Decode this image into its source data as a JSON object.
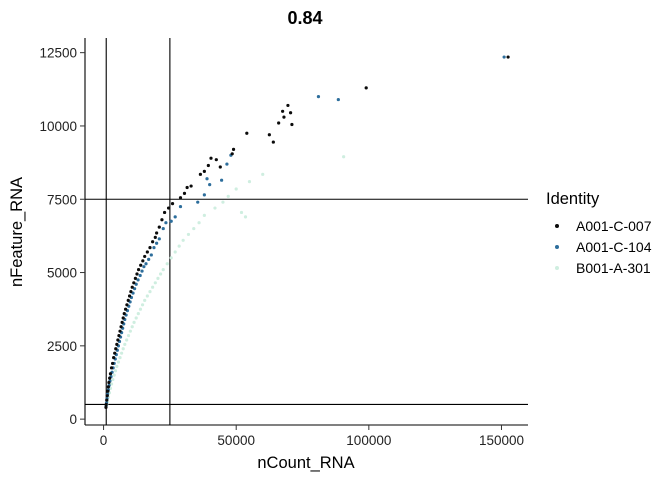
{
  "chart_data": {
    "type": "scatter",
    "title": "0.84",
    "xlabel": "nCount_RNA",
    "ylabel": "nFeature_RNA",
    "xlim": [
      -7000,
      160000
    ],
    "ylim": [
      -200,
      13000
    ],
    "x_ticks": [
      0,
      50000,
      100000,
      150000
    ],
    "y_ticks": [
      0,
      2500,
      5000,
      7500,
      10000,
      12500
    ],
    "grid": false,
    "legend": {
      "title": "Identity",
      "position": "right"
    },
    "reference_lines": {
      "vertical": [
        1000,
        25000
      ],
      "horizontal": [
        500,
        7500
      ]
    },
    "series": [
      {
        "name": "A001-C-007",
        "color": "#0b0b0b",
        "points": [
          [
            152500,
            12350
          ],
          [
            99000,
            11300
          ],
          [
            69500,
            10700
          ],
          [
            67500,
            10500
          ],
          [
            70500,
            10450
          ],
          [
            68000,
            10300
          ],
          [
            66000,
            10100
          ],
          [
            71000,
            10050
          ],
          [
            54000,
            9750
          ],
          [
            62500,
            9700
          ],
          [
            64000,
            9450
          ],
          [
            49000,
            9200
          ],
          [
            48500,
            9050
          ],
          [
            40500,
            8900
          ],
          [
            42500,
            8850
          ],
          [
            39500,
            8650
          ],
          [
            44000,
            8600
          ],
          [
            38000,
            8450
          ],
          [
            36500,
            8350
          ],
          [
            33000,
            7950
          ],
          [
            31500,
            7900
          ],
          [
            30500,
            7700
          ],
          [
            29000,
            7550
          ],
          [
            26000,
            7350
          ],
          [
            24500,
            7200
          ],
          [
            23000,
            7050
          ],
          [
            22000,
            6800
          ],
          [
            21000,
            6550
          ],
          [
            20000,
            6350
          ],
          [
            19500,
            6200
          ],
          [
            18500,
            6050
          ],
          [
            17500,
            5850
          ],
          [
            16500,
            5700
          ],
          [
            15500,
            5550
          ],
          [
            14800,
            5400
          ],
          [
            14000,
            5250
          ],
          [
            13200,
            5100
          ],
          [
            12600,
            4950
          ],
          [
            12000,
            4800
          ],
          [
            11400,
            4650
          ],
          [
            10800,
            4500
          ],
          [
            10300,
            4350
          ],
          [
            9800,
            4200
          ],
          [
            9300,
            4050
          ],
          [
            8800,
            3900
          ],
          [
            8300,
            3750
          ],
          [
            7800,
            3600
          ],
          [
            7400,
            3450
          ],
          [
            7000,
            3300
          ],
          [
            6600,
            3150
          ],
          [
            6200,
            3000
          ],
          [
            5800,
            2850
          ],
          [
            5400,
            2700
          ],
          [
            5000,
            2550
          ],
          [
            4600,
            2400
          ],
          [
            4200,
            2250
          ],
          [
            3800,
            2100
          ],
          [
            3400,
            1900
          ],
          [
            3000,
            1750
          ],
          [
            2600,
            1550
          ],
          [
            2300,
            1400
          ],
          [
            2000,
            1250
          ],
          [
            1800,
            1100
          ],
          [
            1600,
            950
          ],
          [
            1400,
            800
          ],
          [
            1200,
            650
          ],
          [
            1000,
            500
          ],
          [
            900,
            400
          ]
        ]
      },
      {
        "name": "A001-C-104",
        "color": "#2d6e9c",
        "points": [
          [
            151000,
            12350
          ],
          [
            81000,
            11000
          ],
          [
            88500,
            10900
          ],
          [
            48000,
            9000
          ],
          [
            46500,
            8700
          ],
          [
            44500,
            8150
          ],
          [
            39000,
            8200
          ],
          [
            40000,
            8000
          ],
          [
            38000,
            7650
          ],
          [
            35500,
            7400
          ],
          [
            29000,
            7250
          ],
          [
            27000,
            6900
          ],
          [
            25500,
            6750
          ],
          [
            23500,
            6700
          ],
          [
            22500,
            6500
          ],
          [
            21000,
            6150
          ],
          [
            20000,
            6000
          ],
          [
            19000,
            5850
          ],
          [
            18000,
            5600
          ],
          [
            17000,
            5450
          ],
          [
            16000,
            5300
          ],
          [
            15200,
            5200
          ],
          [
            14500,
            5050
          ],
          [
            13800,
            4900
          ],
          [
            13000,
            4750
          ],
          [
            12300,
            4600
          ],
          [
            11700,
            4450
          ],
          [
            11100,
            4300
          ],
          [
            10500,
            4150
          ],
          [
            10000,
            4000
          ],
          [
            9500,
            3850
          ],
          [
            9000,
            3700
          ],
          [
            8500,
            3550
          ],
          [
            8000,
            3400
          ],
          [
            7600,
            3250
          ],
          [
            7200,
            3100
          ],
          [
            6800,
            2950
          ],
          [
            6400,
            2800
          ],
          [
            6000,
            2650
          ],
          [
            5600,
            2500
          ],
          [
            5200,
            2350
          ],
          [
            4800,
            2200
          ],
          [
            4400,
            2050
          ],
          [
            4000,
            1900
          ],
          [
            3600,
            1750
          ],
          [
            3200,
            1600
          ],
          [
            2800,
            1450
          ],
          [
            2400,
            1300
          ],
          [
            2100,
            1150
          ],
          [
            1800,
            1000
          ],
          [
            1500,
            850
          ],
          [
            1300,
            700
          ],
          [
            1100,
            550
          ],
          [
            950,
            450
          ]
        ]
      },
      {
        "name": "B001-A-301",
        "color": "#cfeee0",
        "points": [
          [
            90500,
            8950
          ],
          [
            60000,
            8350
          ],
          [
            55000,
            8100
          ],
          [
            50000,
            7850
          ],
          [
            47000,
            7600
          ],
          [
            45000,
            7400
          ],
          [
            42000,
            7200
          ],
          [
            52000,
            7050
          ],
          [
            53500,
            6900
          ],
          [
            38000,
            6950
          ],
          [
            36000,
            6700
          ],
          [
            34000,
            6500
          ],
          [
            32000,
            6300
          ],
          [
            30000,
            6100
          ],
          [
            28500,
            5900
          ],
          [
            27000,
            5700
          ],
          [
            25500,
            5500
          ],
          [
            24000,
            5300
          ],
          [
            22500,
            5100
          ],
          [
            21500,
            4950
          ],
          [
            20500,
            4800
          ],
          [
            19500,
            4650
          ],
          [
            18500,
            4500
          ],
          [
            17500,
            4350
          ],
          [
            16500,
            4200
          ],
          [
            15500,
            4050
          ],
          [
            14700,
            3900
          ],
          [
            13900,
            3750
          ],
          [
            13100,
            3600
          ],
          [
            12300,
            3450
          ],
          [
            11500,
            3300
          ],
          [
            10800,
            3150
          ],
          [
            10100,
            3000
          ],
          [
            9400,
            2850
          ],
          [
            8700,
            2700
          ],
          [
            8000,
            2550
          ],
          [
            7400,
            2400
          ],
          [
            6800,
            2250
          ],
          [
            6200,
            2100
          ],
          [
            5600,
            1950
          ],
          [
            5000,
            1800
          ],
          [
            4500,
            1650
          ],
          [
            4000,
            1500
          ],
          [
            3500,
            1350
          ],
          [
            3000,
            1200
          ],
          [
            2600,
            1050
          ],
          [
            2200,
            900
          ],
          [
            1800,
            750
          ],
          [
            1500,
            600
          ],
          [
            1200,
            500
          ]
        ]
      }
    ]
  }
}
